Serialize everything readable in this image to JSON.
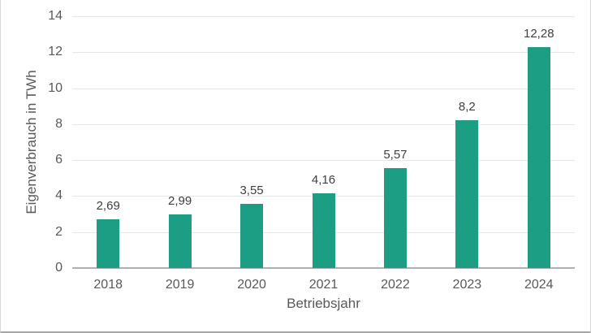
{
  "chart_data": {
    "type": "bar",
    "title": "",
    "xlabel": "Betriebsjahr",
    "ylabel": "Eigenverbrauch in TWh",
    "categories": [
      "2018",
      "2019",
      "2020",
      "2021",
      "2022",
      "2023",
      "2024"
    ],
    "values": [
      2.69,
      2.99,
      3.55,
      4.16,
      5.57,
      8.2,
      12.28
    ],
    "value_labels": [
      "2,69",
      "2,99",
      "3,55",
      "4,16",
      "5,57",
      "8,2",
      "12,28"
    ],
    "ylim": [
      0,
      14
    ],
    "yticks": [
      0,
      2,
      4,
      6,
      8,
      10,
      12,
      14
    ],
    "grid": true,
    "legend": "none",
    "decimal_separator": ",",
    "colors": {
      "bar": "#1b9e84",
      "gridline": "#e6e6e6",
      "axis_line": "#b0b0b0",
      "tick_text": "#595959",
      "value_label_text": "#3f3f3f",
      "card_border": "#d9d9d9"
    }
  }
}
